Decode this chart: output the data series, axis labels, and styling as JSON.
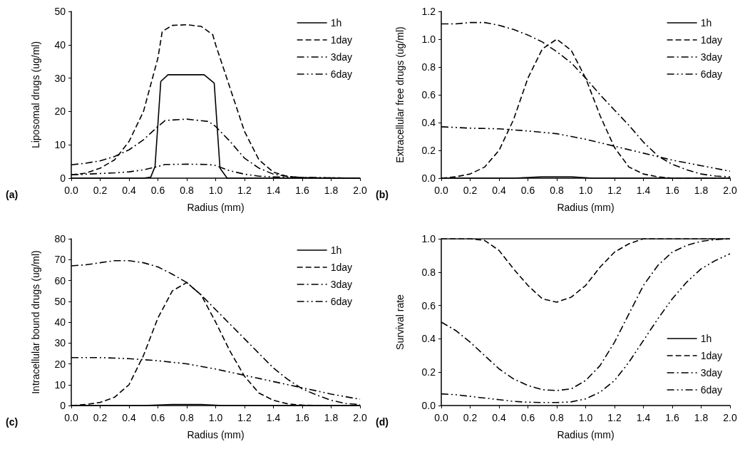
{
  "chart_data": [
    {
      "type": "line",
      "xlabel": "Radius (mm)",
      "ylabel": "Liposomal drugs (ug/ml)",
      "annotations": [
        "(a)"
      ],
      "legend": "top right",
      "grid": false,
      "marker": "none",
      "xlim": [
        0,
        2
      ],
      "xticks": [
        {
          "value": 0,
          "label": "0.0"
        },
        {
          "value": 0.2,
          "label": "0.2"
        },
        {
          "value": 0.4,
          "label": "0.4"
        },
        {
          "value": 0.6,
          "label": "0.6"
        },
        {
          "value": 0.8,
          "label": "0.8"
        },
        {
          "value": 1,
          "label": "1.0"
        },
        {
          "value": 1.2,
          "label": "1.2"
        },
        {
          "value": 1.4,
          "label": "1.4"
        },
        {
          "value": 1.6,
          "label": "1.6"
        },
        {
          "value": 1.8,
          "label": "1.8"
        },
        {
          "value": 2,
          "label": "2.0"
        }
      ],
      "ylim": [
        0,
        50
      ],
      "yticks": [
        0,
        10,
        20,
        30,
        40,
        50
      ],
      "series": [
        {
          "name": "1h",
          "color": "#000000",
          "line_style": "solid",
          "x": [
            0,
            0.5,
            0.55,
            0.58,
            0.62,
            0.67,
            0.92,
            0.99,
            1.03,
            1.08,
            1.2,
            2
          ],
          "values": [
            0,
            0,
            0.3,
            3.5,
            29,
            31,
            31,
            28.5,
            3,
            0,
            0,
            0
          ]
        },
        {
          "name": "1day",
          "color": "#000000",
          "line_style": "dashed",
          "x": [
            0,
            0.1,
            0.2,
            0.3,
            0.4,
            0.5,
            0.6,
            0.63,
            0.7,
            0.8,
            0.9,
            0.98,
            1.0,
            1.1,
            1.2,
            1.3,
            1.4,
            1.5,
            1.6,
            1.8,
            2
          ],
          "values": [
            1,
            1.5,
            3,
            5.5,
            11,
            20,
            36,
            44,
            45.8,
            46,
            45.5,
            43,
            40,
            27,
            14,
            5.5,
            1.8,
            0.5,
            0.2,
            0,
            0
          ]
        },
        {
          "name": "3day",
          "color": "#000000",
          "line_style": "dashdot",
          "x": [
            0,
            0.1,
            0.2,
            0.3,
            0.4,
            0.5,
            0.6,
            0.65,
            0.8,
            0.95,
            1.0,
            1.1,
            1.2,
            1.3,
            1.4,
            1.5,
            1.6,
            2
          ],
          "values": [
            4,
            4.5,
            5.2,
            6.5,
            8.5,
            11.5,
            15.5,
            17.3,
            17.7,
            17,
            15.5,
            11,
            6,
            3,
            1.2,
            0.5,
            0.2,
            0
          ]
        },
        {
          "name": "6day",
          "color": "#000000",
          "line_style": "dashdotdot",
          "x": [
            0,
            0.1,
            0.2,
            0.3,
            0.4,
            0.5,
            0.6,
            0.65,
            0.8,
            0.95,
            1.0,
            1.1,
            1.2,
            1.3,
            1.4,
            1.5,
            1.6,
            2
          ],
          "values": [
            1,
            1.2,
            1.4,
            1.6,
            1.9,
            2.5,
            3.5,
            4.1,
            4.2,
            4.1,
            3.8,
            2.2,
            1.2,
            0.6,
            0.4,
            0.3,
            0.2,
            0
          ]
        }
      ]
    },
    {
      "type": "line",
      "xlabel": "Radius (mm)",
      "ylabel": "Extracellular free drugs (ug/ml)",
      "annotations": [
        "(b)"
      ],
      "legend": "top right",
      "grid": false,
      "marker": "none",
      "xlim": [
        0,
        2
      ],
      "xticks": [
        {
          "value": 0,
          "label": "0.0"
        },
        {
          "value": 0.2,
          "label": "0.2"
        },
        {
          "value": 0.4,
          "label": "0.4"
        },
        {
          "value": 0.6,
          "label": "0.6"
        },
        {
          "value": 0.8,
          "label": "0.8"
        },
        {
          "value": 1,
          "label": "1.0"
        },
        {
          "value": 1.2,
          "label": "1.2"
        },
        {
          "value": 1.4,
          "label": "1.4"
        },
        {
          "value": 1.6,
          "label": "1.6"
        },
        {
          "value": 1.8,
          "label": "1.8"
        },
        {
          "value": 2,
          "label": "2.0"
        }
      ],
      "ylim": [
        0,
        1.2
      ],
      "yticks": [
        {
          "value": 0,
          "label": "0.0"
        },
        {
          "value": 0.2,
          "label": "0.2"
        },
        {
          "value": 0.4,
          "label": "0.4"
        },
        {
          "value": 0.6,
          "label": "0.6"
        },
        {
          "value": 0.8,
          "label": "0.8"
        },
        {
          "value": 1,
          "label": "1.0"
        },
        {
          "value": 1.2,
          "label": "1.2"
        }
      ],
      "series": [
        {
          "name": "1h",
          "color": "#000000",
          "line_style": "solid",
          "x": [
            0,
            0.5,
            0.7,
            0.9,
            1.05,
            1.2,
            2
          ],
          "values": [
            0,
            0,
            0.01,
            0.01,
            0,
            0,
            0
          ]
        },
        {
          "name": "1day",
          "color": "#000000",
          "line_style": "dashed",
          "x": [
            0,
            0.1,
            0.2,
            0.3,
            0.4,
            0.5,
            0.6,
            0.7,
            0.8,
            0.9,
            1.0,
            1.1,
            1.2,
            1.3,
            1.4,
            1.5,
            1.6,
            2
          ],
          "values": [
            0,
            0.01,
            0.03,
            0.08,
            0.2,
            0.42,
            0.72,
            0.93,
            1.0,
            0.92,
            0.72,
            0.45,
            0.22,
            0.08,
            0.03,
            0.01,
            0,
            0
          ]
        },
        {
          "name": "3day",
          "color": "#000000",
          "line_style": "dashdot",
          "x": [
            0,
            0.1,
            0.2,
            0.3,
            0.4,
            0.5,
            0.6,
            0.7,
            0.8,
            0.9,
            1.0,
            1.1,
            1.2,
            1.3,
            1.4,
            1.5,
            1.6,
            1.7,
            1.8,
            1.9,
            2
          ],
          "values": [
            1.11,
            1.11,
            1.12,
            1.12,
            1.1,
            1.07,
            1.03,
            0.98,
            0.91,
            0.83,
            0.72,
            0.6,
            0.49,
            0.38,
            0.26,
            0.16,
            0.1,
            0.06,
            0.03,
            0.015,
            0.01
          ]
        },
        {
          "name": "6day",
          "color": "#000000",
          "line_style": "dashdotdot",
          "x": [
            0,
            0.2,
            0.4,
            0.6,
            0.8,
            1.0,
            1.2,
            1.4,
            1.6,
            1.8,
            2
          ],
          "values": [
            0.37,
            0.36,
            0.355,
            0.34,
            0.32,
            0.28,
            0.23,
            0.18,
            0.13,
            0.09,
            0.05
          ]
        }
      ]
    },
    {
      "type": "line",
      "xlabel": "Radius (mm)",
      "ylabel": "Intracellular bound drugs (ug/ml)",
      "annotations": [
        "(c)"
      ],
      "legend": "top right",
      "grid": false,
      "marker": "none",
      "xlim": [
        0,
        2
      ],
      "xticks": [
        {
          "value": 0,
          "label": "0.0"
        },
        {
          "value": 0.2,
          "label": "0.2"
        },
        {
          "value": 0.4,
          "label": "0.4"
        },
        {
          "value": 0.6,
          "label": "0.6"
        },
        {
          "value": 0.8,
          "label": "0.8"
        },
        {
          "value": 1,
          "label": "1.0"
        },
        {
          "value": 1.2,
          "label": "1.2"
        },
        {
          "value": 1.4,
          "label": "1.4"
        },
        {
          "value": 1.6,
          "label": "1.6"
        },
        {
          "value": 1.8,
          "label": "1.8"
        },
        {
          "value": 2,
          "label": "2.0"
        }
      ],
      "ylim": [
        0,
        80
      ],
      "yticks": [
        0,
        10,
        20,
        30,
        40,
        50,
        60,
        70,
        80
      ],
      "series": [
        {
          "name": "1h",
          "color": "#000000",
          "line_style": "solid",
          "x": [
            0,
            0.5,
            0.7,
            0.9,
            1.05,
            1.2,
            2
          ],
          "values": [
            0,
            0,
            0.5,
            0.5,
            0,
            0,
            0
          ]
        },
        {
          "name": "1day",
          "color": "#000000",
          "line_style": "dashed",
          "x": [
            0,
            0.1,
            0.2,
            0.3,
            0.4,
            0.5,
            0.6,
            0.7,
            0.8,
            0.9,
            1.0,
            1.1,
            1.2,
            1.3,
            1.4,
            1.5,
            1.6,
            1.7,
            2
          ],
          "values": [
            0,
            0.5,
            1.5,
            4,
            10,
            24,
            42,
            55,
            59,
            53,
            40,
            26,
            14,
            6,
            2.5,
            0.8,
            0.2,
            0,
            0
          ]
        },
        {
          "name": "3day",
          "color": "#000000",
          "line_style": "dashdot",
          "x": [
            0,
            0.1,
            0.2,
            0.3,
            0.4,
            0.5,
            0.6,
            0.7,
            0.8,
            0.9,
            1.0,
            1.1,
            1.2,
            1.3,
            1.4,
            1.5,
            1.6,
            1.7,
            1.8,
            1.9,
            2
          ],
          "values": [
            67,
            67.5,
            68.5,
            69.5,
            69.5,
            68.5,
            66.5,
            63,
            59,
            53,
            46,
            39,
            32,
            25,
            18,
            12.5,
            8,
            5,
            2.5,
            1,
            0.5
          ]
        },
        {
          "name": "6day",
          "color": "#000000",
          "line_style": "dashdotdot",
          "x": [
            0,
            0.2,
            0.4,
            0.6,
            0.8,
            1.0,
            1.2,
            1.4,
            1.6,
            1.8,
            2
          ],
          "values": [
            23,
            23,
            22.5,
            21.5,
            20,
            17.5,
            14.5,
            11.5,
            8.5,
            5.5,
            3
          ]
        }
      ]
    },
    {
      "type": "line",
      "xlabel": "Radius (mm)",
      "ylabel": "Survival rate",
      "annotations": [
        "(d)"
      ],
      "legend": "bottom right",
      "grid": false,
      "marker": "none",
      "xlim": [
        0,
        2
      ],
      "xticks": [
        {
          "value": 0,
          "label": "0.0"
        },
        {
          "value": 0.2,
          "label": "0.2"
        },
        {
          "value": 0.4,
          "label": "0.4"
        },
        {
          "value": 0.6,
          "label": "0.6"
        },
        {
          "value": 0.8,
          "label": "0.8"
        },
        {
          "value": 1,
          "label": "1.0"
        },
        {
          "value": 1.2,
          "label": "1.2"
        },
        {
          "value": 1.4,
          "label": "1.4"
        },
        {
          "value": 1.6,
          "label": "1.6"
        },
        {
          "value": 1.8,
          "label": "1.8"
        },
        {
          "value": 2,
          "label": "2.0"
        }
      ],
      "ylim": [
        0,
        1
      ],
      "yticks": [
        {
          "value": 0,
          "label": "0.0"
        },
        {
          "value": 0.2,
          "label": "0.2"
        },
        {
          "value": 0.4,
          "label": "0.4"
        },
        {
          "value": 0.6,
          "label": "0.6"
        },
        {
          "value": 0.8,
          "label": "0.8"
        },
        {
          "value": 1,
          "label": "1.0"
        }
      ],
      "series": [
        {
          "name": "1h",
          "color": "#000000",
          "line_style": "solid",
          "x": [
            0,
            2
          ],
          "values": [
            1,
            1
          ]
        },
        {
          "name": "1day",
          "color": "#000000",
          "line_style": "dashed",
          "x": [
            0,
            0.2,
            0.3,
            0.4,
            0.5,
            0.6,
            0.7,
            0.8,
            0.9,
            1.0,
            1.1,
            1.2,
            1.3,
            1.4,
            2
          ],
          "values": [
            1,
            1,
            0.99,
            0.93,
            0.82,
            0.72,
            0.64,
            0.62,
            0.65,
            0.72,
            0.83,
            0.92,
            0.97,
            1,
            1
          ]
        },
        {
          "name": "3day",
          "color": "#000000",
          "line_style": "dashdot",
          "x": [
            0,
            0.1,
            0.2,
            0.3,
            0.4,
            0.5,
            0.6,
            0.7,
            0.8,
            0.9,
            1.0,
            1.1,
            1.2,
            1.3,
            1.4,
            1.5,
            1.6,
            1.7,
            1.8,
            1.9,
            2
          ],
          "values": [
            0.5,
            0.45,
            0.38,
            0.3,
            0.22,
            0.16,
            0.12,
            0.095,
            0.09,
            0.1,
            0.15,
            0.24,
            0.38,
            0.55,
            0.72,
            0.84,
            0.92,
            0.96,
            0.985,
            0.995,
            1
          ]
        },
        {
          "name": "6day",
          "color": "#000000",
          "line_style": "dashdotdot",
          "x": [
            0,
            0.1,
            0.2,
            0.3,
            0.4,
            0.5,
            0.6,
            0.7,
            0.8,
            0.9,
            1.0,
            1.1,
            1.2,
            1.3,
            1.4,
            1.5,
            1.6,
            1.7,
            1.8,
            1.9,
            2
          ],
          "values": [
            0.07,
            0.065,
            0.055,
            0.045,
            0.035,
            0.025,
            0.02,
            0.018,
            0.018,
            0.022,
            0.04,
            0.08,
            0.15,
            0.26,
            0.39,
            0.52,
            0.64,
            0.74,
            0.82,
            0.87,
            0.91
          ]
        }
      ]
    }
  ]
}
